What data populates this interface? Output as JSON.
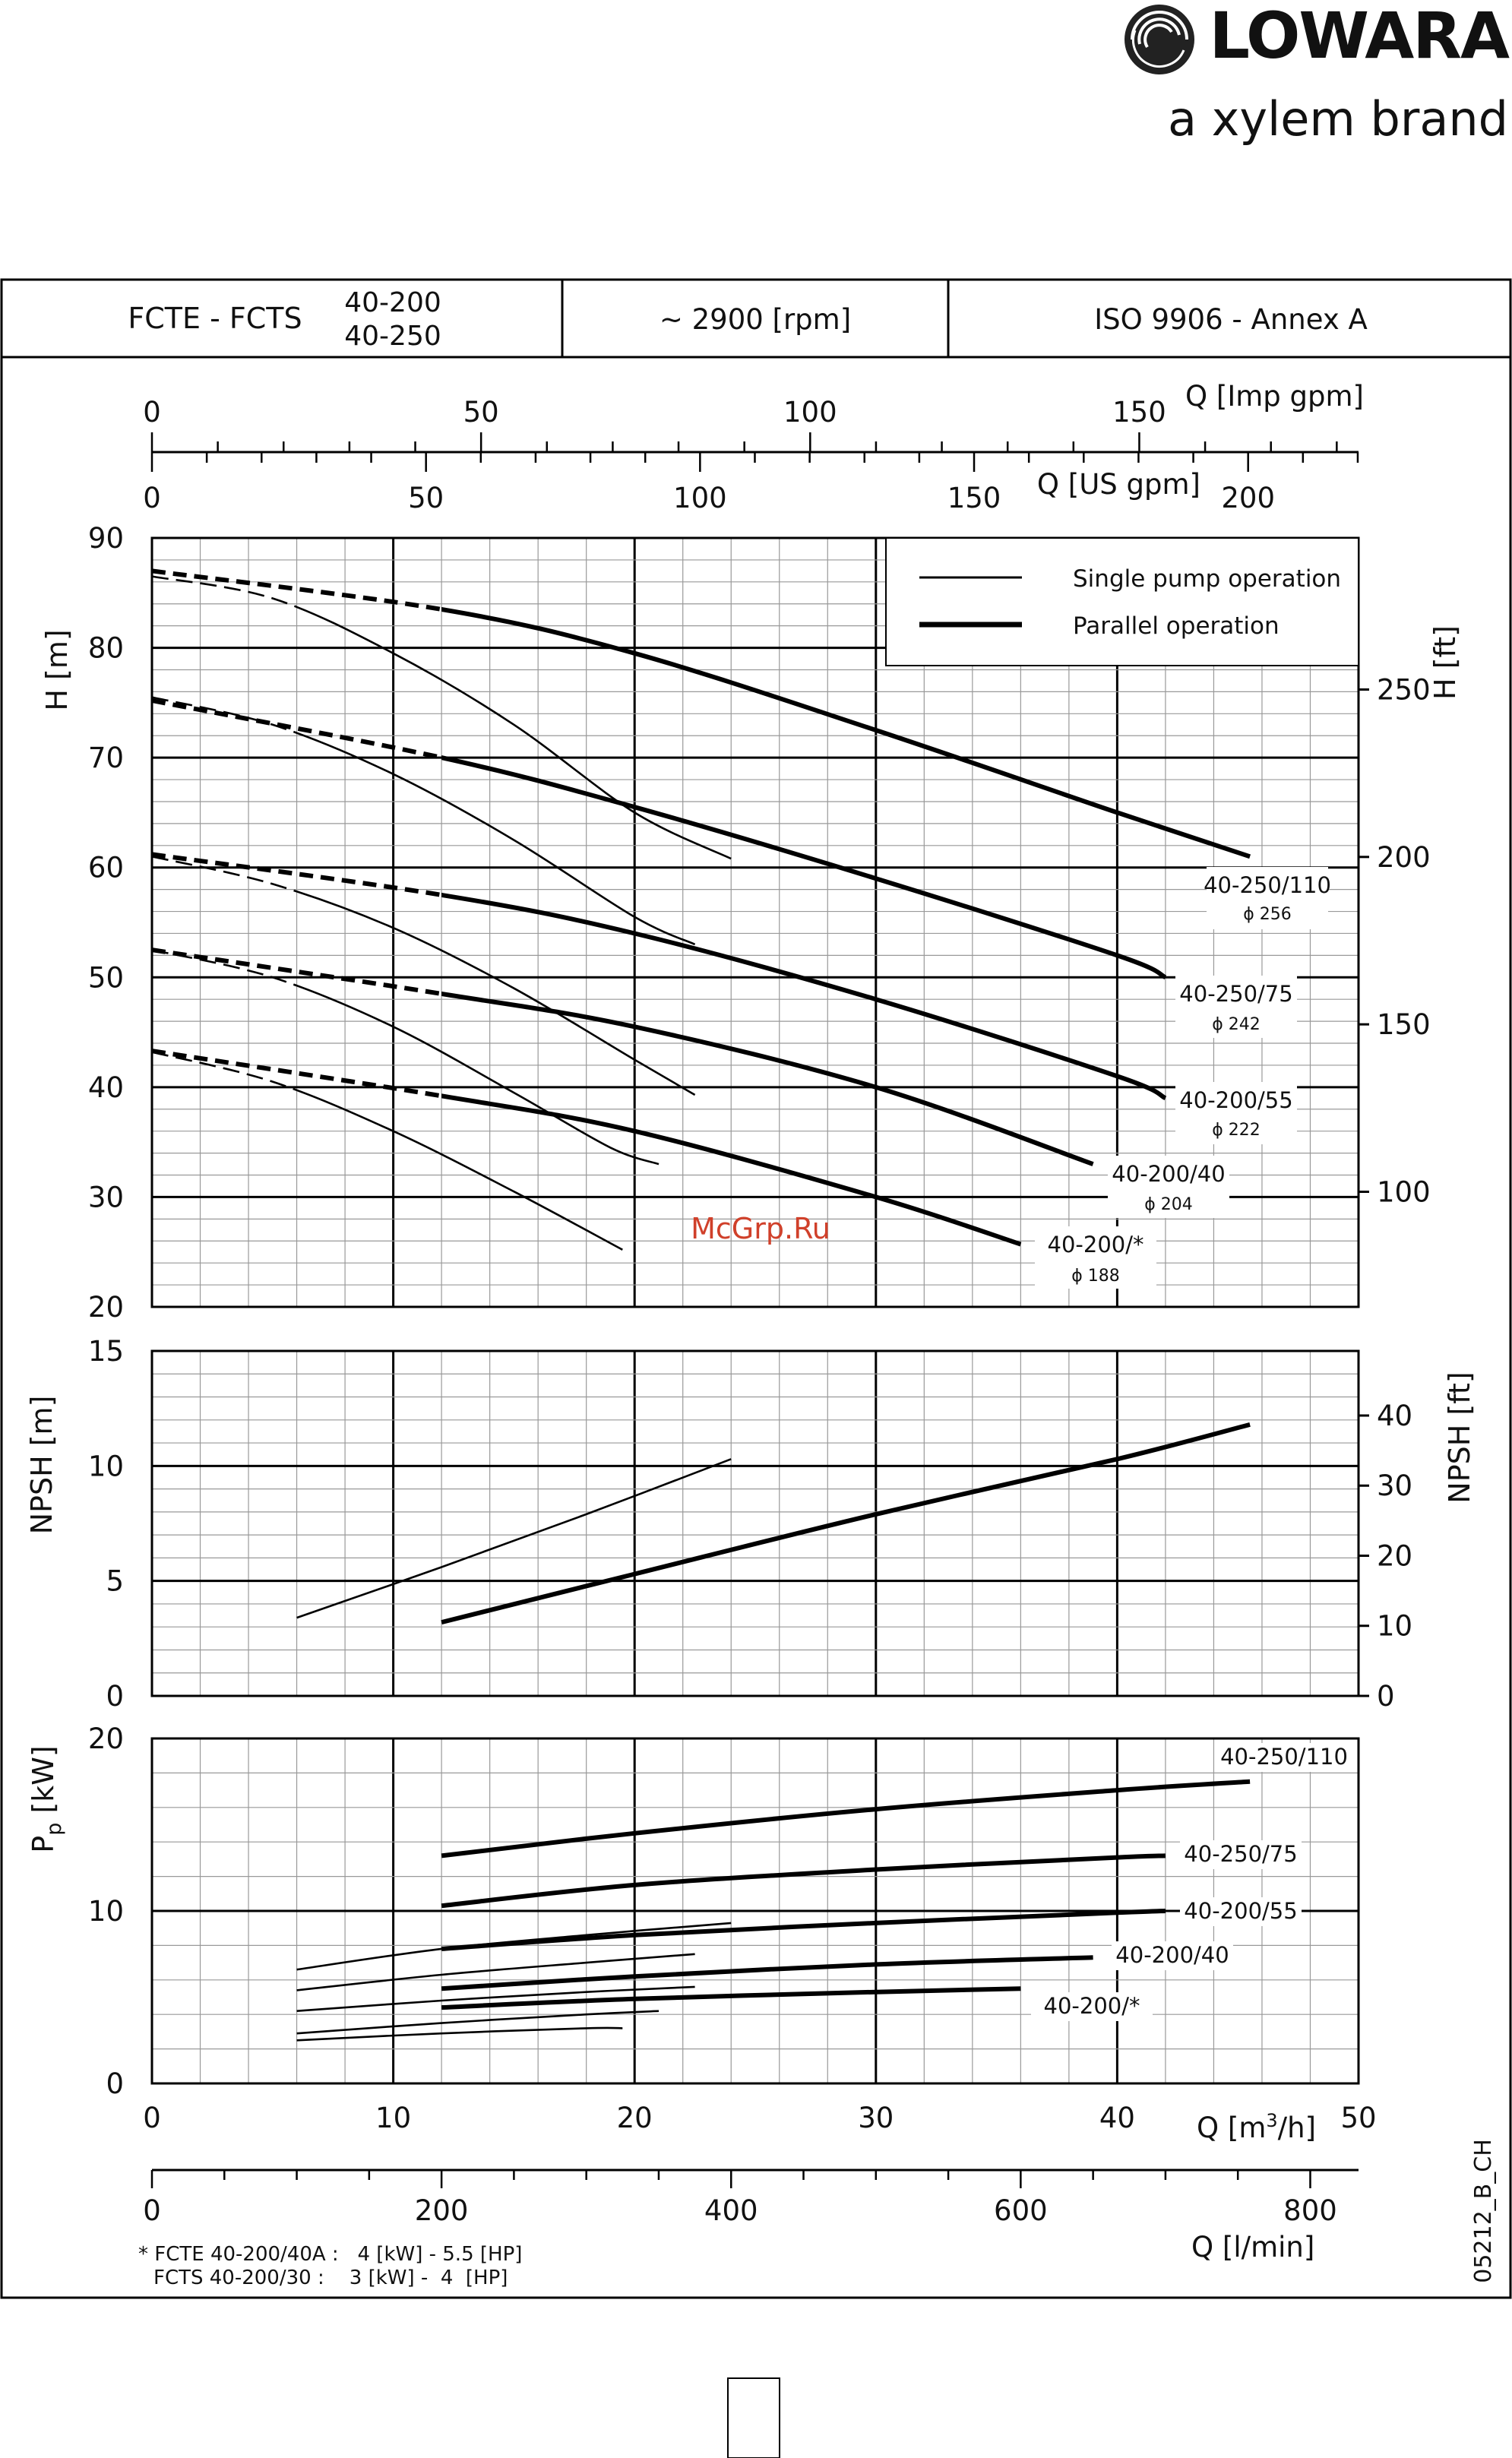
{
  "brand": {
    "name": "LOWARA",
    "tagline": "a xylem brand"
  },
  "header": {
    "model": "FCTE - FCTS",
    "sizes": [
      "40-200",
      "40-250"
    ],
    "speed": "~ 2900 [rpm]",
    "standard": "ISO 9906 - Annex A"
  },
  "watermark": "McGrp.Ru",
  "drawing_code": "05212_B_CH",
  "footnote": [
    "* FCTE 40-200/40A :   4 [kW] - 5.5 [HP]",
    "FCTS 40-200/30 :    3 [kW] -  4  [HP]"
  ],
  "legend": {
    "single": "Single pump operation",
    "parallel": "Parallel operation"
  },
  "axes": {
    "imp_gpm": {
      "label": "Q [Imp gpm]",
      "ticks": [
        "0",
        "50",
        "100",
        "150"
      ]
    },
    "us_gpm": {
      "label": "Q [US gpm]",
      "ticks": [
        "0",
        "50",
        "100",
        "150",
        "200"
      ]
    },
    "h_m": {
      "label": "H [m]",
      "ticks": [
        "20",
        "30",
        "40",
        "50",
        "60",
        "70",
        "80",
        "90"
      ]
    },
    "h_ft": {
      "label": "H [ft]",
      "ticks": [
        "100",
        "150",
        "200",
        "250"
      ]
    },
    "npsh_m": {
      "label": "NPSH [m]",
      "ticks": [
        "0",
        "5",
        "10",
        "15"
      ]
    },
    "npsh_ft": {
      "label": "NPSH [ft]",
      "ticks": [
        "0",
        "10",
        "20",
        "30",
        "40"
      ]
    },
    "p_kw": {
      "label": "P",
      "sub": "p",
      "unit": " [kW]",
      "ticks": [
        "0",
        "10",
        "20"
      ]
    },
    "q_m3h": {
      "label": "Q [m",
      "sup": "3",
      "tail": "/h]",
      "ticks": [
        "0",
        "10",
        "20",
        "30",
        "40",
        "50"
      ]
    },
    "q_lmin": {
      "label": "Q [l/min]",
      "ticks": [
        "0",
        "200",
        "400",
        "600",
        "800"
      ]
    }
  },
  "chart_data": {
    "type": "line",
    "x_unit": "m3/h",
    "xlim": [
      0,
      50
    ],
    "panels": [
      {
        "name": "head",
        "ylim": [
          20,
          90
        ],
        "y_unit": "m",
        "series": [
          {
            "name": "40-250/110",
            "diameter": "ϕ 256",
            "mode": "single",
            "x": [
              0,
              5,
              10,
              15,
              20,
              24
            ],
            "y": [
              86.5,
              84.5,
              79.5,
              73,
              65,
              60.8
            ]
          },
          {
            "name": "40-250/110",
            "diameter": "ϕ 256",
            "mode": "parallel",
            "x": [
              0,
              12,
              20,
              30,
              40,
              45.5
            ],
            "y": [
              87,
              83.5,
              79.5,
              72.5,
              65,
              61
            ]
          },
          {
            "name": "40-250/75",
            "diameter": "ϕ 242",
            "mode": "single",
            "x": [
              0,
              5,
              10,
              15,
              20,
              22.5
            ],
            "y": [
              75.5,
              73,
              68.5,
              62.5,
              55.5,
              53
            ]
          },
          {
            "name": "40-250/75",
            "diameter": "ϕ 242",
            "mode": "parallel",
            "x": [
              0,
              12,
              20,
              30,
              40,
              42
            ],
            "y": [
              75.2,
              70,
              65.5,
              59,
              52,
              50
            ]
          },
          {
            "name": "40-200/55",
            "diameter": "ϕ 222",
            "mode": "single",
            "x": [
              0,
              5,
              10,
              15,
              20,
              22.5
            ],
            "y": [
              61,
              58.5,
              54.5,
              49,
              42.5,
              39.3
            ]
          },
          {
            "name": "40-200/55",
            "diameter": "ϕ 222",
            "mode": "parallel",
            "x": [
              0,
              12,
              20,
              30,
              40,
              42
            ],
            "y": [
              61.2,
              57.5,
              54,
              48,
              41,
              39
            ]
          },
          {
            "name": "40-200/40",
            "diameter": "ϕ 204",
            "mode": "single",
            "x": [
              0,
              5,
              10,
              15,
              19,
              21
            ],
            "y": [
              52.5,
              50,
              45.5,
              39.5,
              34.5,
              33
            ]
          },
          {
            "name": "40-200/40",
            "diameter": "ϕ 204",
            "mode": "parallel",
            "x": [
              0,
              12,
              20,
              30,
              39
            ],
            "y": [
              52.5,
              48.5,
              45.5,
              40,
              33
            ]
          },
          {
            "name": "40-200/*",
            "diameter": "ϕ 188",
            "mode": "single",
            "x": [
              0,
              5,
              10,
              15,
              19.5
            ],
            "y": [
              43.2,
              40.5,
              36,
              30.5,
              25.2
            ]
          },
          {
            "name": "40-200/*",
            "diameter": "ϕ 188",
            "mode": "parallel",
            "x": [
              0,
              12,
              20,
              30,
              36
            ],
            "y": [
              43.3,
              39.2,
              36,
              30,
              25.7
            ]
          }
        ]
      },
      {
        "name": "npsh",
        "ylim": [
          0,
          15
        ],
        "y_unit": "m",
        "series": [
          {
            "name": "single",
            "x": [
              6,
              12,
              18,
              24
            ],
            "y": [
              3.4,
              5.6,
              7.9,
              10.3
            ]
          },
          {
            "name": "parallel",
            "x": [
              12,
              20,
              30,
              40,
              45.5
            ],
            "y": [
              3.2,
              5.3,
              7.9,
              10.3,
              11.8
            ]
          }
        ]
      },
      {
        "name": "power",
        "ylim": [
          0,
          20
        ],
        "y_unit": "kW",
        "series": [
          {
            "name": "40-250/110",
            "mode": "parallel",
            "x": [
              12,
              20,
              30,
              40,
              45.5
            ],
            "y": [
              13.2,
              14.5,
              15.9,
              17,
              17.5
            ]
          },
          {
            "name": "40-250/75",
            "mode": "parallel",
            "x": [
              12,
              20,
              30,
              40,
              42
            ],
            "y": [
              10.3,
              11.5,
              12.4,
              13.1,
              13.2
            ]
          },
          {
            "name": "40-200/55",
            "mode": "parallel",
            "x": [
              12,
              20,
              30,
              40,
              42
            ],
            "y": [
              7.8,
              8.6,
              9.3,
              9.9,
              10
            ]
          },
          {
            "name": "40-200/40",
            "mode": "parallel",
            "x": [
              12,
              20,
              30,
              39
            ],
            "y": [
              5.5,
              6.2,
              6.9,
              7.3
            ]
          },
          {
            "name": "40-200/*",
            "mode": "parallel",
            "x": [
              12,
              20,
              30,
              36
            ],
            "y": [
              4.4,
              4.9,
              5.3,
              5.5
            ]
          },
          {
            "name": "40-250/110",
            "mode": "single",
            "x": [
              6,
              12,
              18,
              24
            ],
            "y": [
              6.6,
              7.8,
              8.6,
              9.3
            ]
          },
          {
            "name": "40-250/75",
            "mode": "single",
            "x": [
              6,
              12,
              18,
              22.5
            ],
            "y": [
              5.4,
              6.3,
              7,
              7.5
            ]
          },
          {
            "name": "40-200/55",
            "mode": "single",
            "x": [
              6,
              12,
              18,
              22.5
            ],
            "y": [
              4.2,
              4.8,
              5.3,
              5.6
            ]
          },
          {
            "name": "40-200/40",
            "mode": "single",
            "x": [
              6,
              12,
              18,
              21
            ],
            "y": [
              2.9,
              3.5,
              4,
              4.2
            ]
          },
          {
            "name": "40-200/*",
            "mode": "single",
            "x": [
              6,
              12,
              18,
              19.5
            ],
            "y": [
              2.5,
              2.9,
              3.2,
              3.2
            ]
          }
        ]
      }
    ]
  }
}
